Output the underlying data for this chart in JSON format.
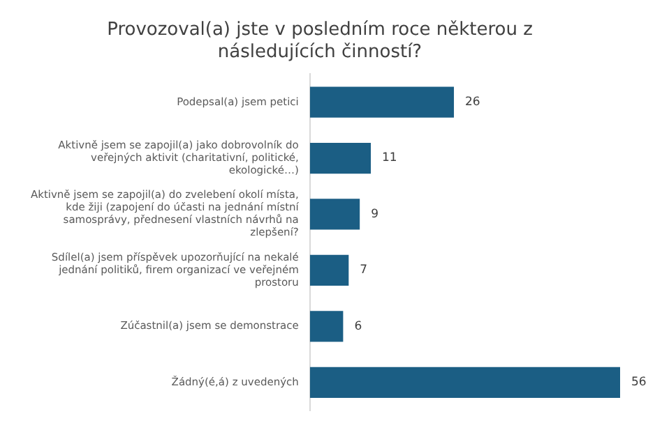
{
  "chart_data": {
    "type": "bar",
    "orientation": "horizontal",
    "title": "Provozoval(a) jste v posledním roce některou z následujících činností?",
    "categories": [
      "Podepsal(a) jsem petici",
      "Aktivně jsem se zapojil(a) jako dobrovolník do veřejných aktivit (charitativní, politické, ekologické…)",
      "Aktivně jsem se zapojil(a) do zvelebení okolí místa, kde žiji (zapojení do účasti na jednání místní samosprávy, přednesení vlastních návrhů na zlepšení?",
      "Sdílel(a) jsem příspěvek upozorňující na nekalé jednání politiků, firem organizací ve veřejném prostoru",
      "Zúčastnil(a) jsem se demonstrace",
      "Žádný(é,á) z uvedených"
    ],
    "values": [
      26,
      11,
      9,
      7,
      6,
      56
    ],
    "color": "#1b5e84",
    "data_labels": true
  }
}
